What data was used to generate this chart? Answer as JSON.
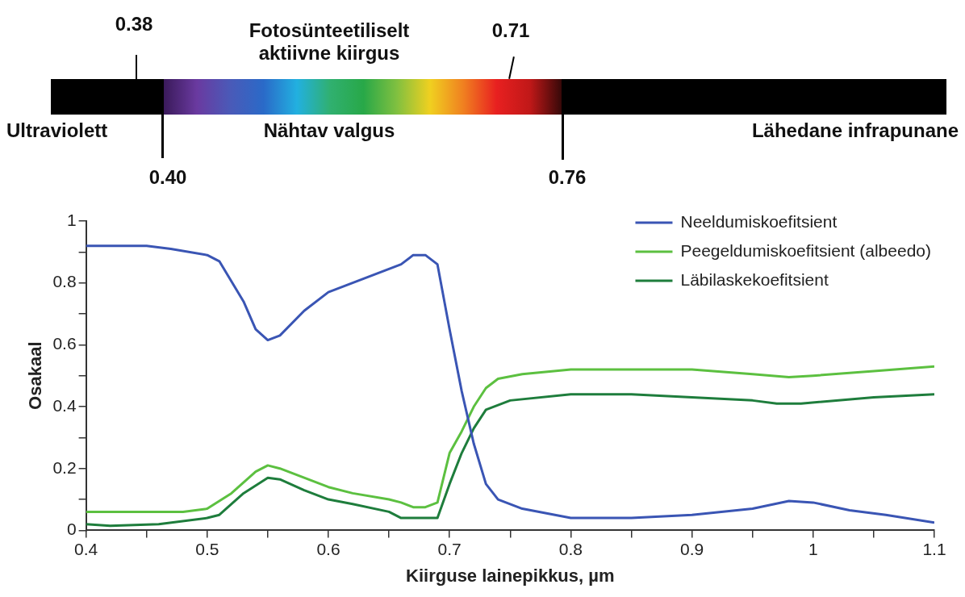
{
  "chart_data": {
    "type": "line",
    "xlabel": "Kiirguse lainepikkus, µm",
    "ylabel": "Osakaal",
    "xlim": [
      0.4,
      1.1
    ],
    "xticks": [
      0.4,
      {
        "value": 0.45,
        "label": null
      },
      0.5,
      {
        "value": 0.55,
        "label": null
      },
      0.6,
      {
        "value": 0.65,
        "label": null
      },
      0.7,
      {
        "value": 0.75,
        "label": null
      },
      0.8,
      {
        "value": 0.85,
        "label": null
      },
      0.9,
      {
        "value": 0.95,
        "label": null
      },
      1,
      {
        "value": 1.05,
        "label": null
      },
      1.1
    ],
    "ylim": [
      0,
      1
    ],
    "yticks": [
      0,
      {
        "value": 0.1,
        "label": null
      },
      0.2,
      {
        "value": 0.3,
        "label": null
      },
      0.4,
      {
        "value": 0.5,
        "label": null
      },
      0.6,
      {
        "value": 0.7,
        "label": null
      },
      0.8,
      {
        "value": 0.9,
        "label": null
      },
      1
    ],
    "grid": false,
    "legend": "top right",
    "marker": "none",
    "line_style": "solid",
    "series": [
      {
        "name": "Neeldumiskoefitsient",
        "color": "#3a55b4",
        "x": [
          0.4,
          0.45,
          0.47,
          0.5,
          0.51,
          0.53,
          0.54,
          0.55,
          0.56,
          0.58,
          0.6,
          0.62,
          0.64,
          0.66,
          0.67,
          0.68,
          0.69,
          0.7,
          0.71,
          0.72,
          0.73,
          0.74,
          0.76,
          0.8,
          0.85,
          0.9,
          0.95,
          0.98,
          1.0,
          1.03,
          1.06,
          1.1
        ],
        "values": [
          0.92,
          0.92,
          0.91,
          0.89,
          0.87,
          0.74,
          0.65,
          0.615,
          0.63,
          0.71,
          0.77,
          0.8,
          0.83,
          0.86,
          0.89,
          0.89,
          0.86,
          0.65,
          0.45,
          0.28,
          0.15,
          0.1,
          0.07,
          0.04,
          0.04,
          0.05,
          0.07,
          0.095,
          0.09,
          0.065,
          0.05,
          0.025
        ]
      },
      {
        "name": "Peegeldumiskoefitsient (albeedo)",
        "color": "#5cc040",
        "x": [
          0.4,
          0.48,
          0.5,
          0.52,
          0.54,
          0.55,
          0.56,
          0.58,
          0.6,
          0.62,
          0.65,
          0.66,
          0.67,
          0.68,
          0.69,
          0.7,
          0.71,
          0.72,
          0.73,
          0.74,
          0.76,
          0.8,
          0.9,
          0.95,
          0.98,
          1.0,
          1.05,
          1.1
        ],
        "values": [
          0.06,
          0.06,
          0.07,
          0.12,
          0.19,
          0.21,
          0.2,
          0.17,
          0.14,
          0.12,
          0.1,
          0.09,
          0.075,
          0.075,
          0.09,
          0.25,
          0.32,
          0.4,
          0.46,
          0.49,
          0.505,
          0.52,
          0.52,
          0.505,
          0.495,
          0.5,
          0.515,
          0.53
        ]
      },
      {
        "name": "Läbilaskekoefitsient",
        "color": "#1e7d3c",
        "x": [
          0.4,
          0.42,
          0.46,
          0.5,
          0.51,
          0.53,
          0.55,
          0.56,
          0.58,
          0.6,
          0.62,
          0.65,
          0.66,
          0.69,
          0.7,
          0.71,
          0.72,
          0.73,
          0.75,
          0.8,
          0.85,
          0.9,
          0.95,
          0.97,
          0.99,
          1.05,
          1.1
        ],
        "values": [
          0.02,
          0.015,
          0.02,
          0.04,
          0.05,
          0.12,
          0.17,
          0.165,
          0.13,
          0.1,
          0.085,
          0.06,
          0.04,
          0.04,
          0.15,
          0.25,
          0.33,
          0.39,
          0.42,
          0.44,
          0.44,
          0.43,
          0.42,
          0.41,
          0.41,
          0.43,
          0.44
        ]
      }
    ],
    "annotations": [
      "0.38",
      "Fotosünteetiliselt aktiivne kiirgus",
      "0.71",
      "Ultraviolett",
      "Nähtav valgus",
      "Lähedane infrapunane",
      "0.40",
      "0.76"
    ]
  }
}
